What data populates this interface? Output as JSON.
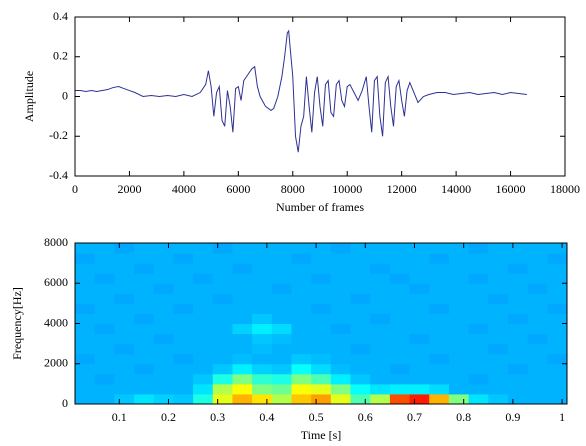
{
  "chart_data": [
    {
      "type": "line",
      "ylabel": "Amplitude",
      "xlabel": "Number of frames",
      "color": "#2e3192",
      "x": [
        0,
        200,
        400,
        600,
        800,
        1000,
        1200,
        1400,
        1600,
        1800,
        2000,
        2200,
        2500,
        2800,
        3100,
        3400,
        3700,
        4000,
        4300,
        4600,
        4800,
        4900,
        5000,
        5100,
        5200,
        5300,
        5400,
        5500,
        5600,
        5700,
        5800,
        5900,
        6000,
        6100,
        6200,
        6300,
        6400,
        6500,
        6600,
        6700,
        6800,
        7000,
        7200,
        7300,
        7450,
        7600,
        7700,
        7800,
        7850,
        7900,
        8000,
        8100,
        8200,
        8300,
        8400,
        8500,
        8600,
        8700,
        8800,
        8900,
        9000,
        9100,
        9200,
        9300,
        9400,
        9500,
        9600,
        9700,
        9800,
        9900,
        10000,
        10100,
        10250,
        10400,
        10550,
        10700,
        10800,
        10900,
        11000,
        11100,
        11200,
        11300,
        11400,
        11500,
        11600,
        11700,
        11800,
        11900,
        12000,
        12100,
        12200,
        12300,
        12450,
        12600,
        12800,
        13000,
        13300,
        13600,
        13900,
        14200,
        14500,
        14800,
        15100,
        15400,
        15700,
        16000,
        16300,
        16600
      ],
      "values": [
        0.03,
        0.03,
        0.025,
        0.03,
        0.025,
        0.03,
        0.035,
        0.045,
        0.05,
        0.04,
        0.03,
        0.02,
        0.0,
        0.005,
        0.0,
        0.005,
        0.0,
        0.01,
        0.0,
        0.02,
        0.06,
        0.13,
        0.05,
        -0.1,
        0.02,
        0.05,
        -0.12,
        -0.15,
        0.03,
        -0.05,
        -0.18,
        0.04,
        0.05,
        -0.02,
        0.08,
        0.1,
        0.12,
        0.14,
        0.15,
        0.05,
        0.0,
        -0.05,
        -0.07,
        -0.06,
        0.0,
        0.1,
        0.2,
        0.32,
        0.33,
        0.25,
        0.1,
        -0.2,
        -0.28,
        -0.15,
        -0.1,
        0.1,
        -0.05,
        -0.18,
        0.02,
        0.1,
        -0.05,
        -0.15,
        0.06,
        0.08,
        -0.08,
        -0.1,
        0.06,
        0.08,
        -0.02,
        -0.05,
        0.05,
        0.06,
        0.02,
        -0.02,
        0.03,
        0.1,
        -0.05,
        -0.18,
        0.08,
        0.1,
        -0.1,
        -0.2,
        0.07,
        0.1,
        -0.05,
        -0.15,
        0.05,
        0.08,
        -0.02,
        -0.1,
        0.03,
        0.07,
        0.02,
        -0.03,
        0.0,
        0.01,
        0.02,
        0.02,
        0.01,
        0.015,
        0.02,
        0.01,
        0.015,
        0.02,
        0.01,
        0.02,
        0.015,
        0.01
      ],
      "xlim": [
        0,
        18000
      ],
      "xticks": [
        0,
        2000,
        4000,
        6000,
        8000,
        10000,
        12000,
        14000,
        16000,
        18000
      ],
      "ylim": [
        -0.4,
        0.4
      ],
      "yticks": [
        -0.4,
        -0.2,
        0,
        0.2,
        0.4
      ]
    },
    {
      "type": "heatmap",
      "ylabel": "Frequency[Hz]",
      "xlabel": "Time [s]",
      "colormap": "jet",
      "x": [
        0.03,
        0.07,
        0.11,
        0.15,
        0.19,
        0.23,
        0.27,
        0.31,
        0.35,
        0.39,
        0.43,
        0.47,
        0.51,
        0.55,
        0.59,
        0.63,
        0.67,
        0.71,
        0.75,
        0.79,
        0.83,
        0.87,
        0.91,
        0.95,
        0.99
      ],
      "y": [
        250,
        750,
        1250,
        1750,
        2250,
        2750,
        3250,
        3750,
        4250,
        4750,
        5250,
        5750,
        6250,
        6750,
        7250,
        7750
      ],
      "z": [
        [
          0.3,
          0.3,
          0.32,
          0.35,
          0.33,
          0.32,
          0.4,
          0.6,
          0.7,
          0.65,
          0.55,
          0.68,
          0.72,
          0.6,
          0.45,
          0.55,
          0.8,
          0.85,
          0.7,
          0.5,
          0.35,
          0.32,
          0.3,
          0.3,
          0.3
        ],
        [
          0.3,
          0.3,
          0.3,
          0.3,
          0.3,
          0.3,
          0.35,
          0.55,
          0.62,
          0.5,
          0.48,
          0.62,
          0.6,
          0.5,
          0.38,
          0.35,
          0.36,
          0.36,
          0.34,
          0.3,
          0.3,
          0.3,
          0.3,
          0.3,
          0.3
        ],
        [
          0.3,
          0.29,
          0.3,
          0.3,
          0.3,
          0.3,
          0.32,
          0.4,
          0.5,
          0.42,
          0.4,
          0.5,
          0.45,
          0.36,
          0.32,
          0.3,
          0.3,
          0.3,
          0.3,
          0.3,
          0.29,
          0.3,
          0.3,
          0.3,
          0.3
        ],
        [
          0.3,
          0.3,
          0.3,
          0.29,
          0.3,
          0.3,
          0.3,
          0.32,
          0.36,
          0.33,
          0.32,
          0.38,
          0.34,
          0.31,
          0.3,
          0.3,
          0.29,
          0.3,
          0.3,
          0.3,
          0.3,
          0.3,
          0.29,
          0.3,
          0.3
        ],
        [
          0.29,
          0.3,
          0.3,
          0.3,
          0.3,
          0.29,
          0.3,
          0.3,
          0.31,
          0.3,
          0.3,
          0.32,
          0.31,
          0.3,
          0.3,
          0.3,
          0.3,
          0.3,
          0.29,
          0.3,
          0.3,
          0.3,
          0.3,
          0.3,
          0.29
        ],
        [
          0.3,
          0.3,
          0.29,
          0.3,
          0.3,
          0.3,
          0.3,
          0.3,
          0.3,
          0.31,
          0.3,
          0.3,
          0.3,
          0.3,
          0.29,
          0.3,
          0.3,
          0.3,
          0.3,
          0.3,
          0.3,
          0.29,
          0.3,
          0.3,
          0.3
        ],
        [
          0.3,
          0.3,
          0.3,
          0.3,
          0.29,
          0.3,
          0.3,
          0.3,
          0.3,
          0.32,
          0.31,
          0.3,
          0.3,
          0.3,
          0.3,
          0.3,
          0.3,
          0.29,
          0.3,
          0.3,
          0.3,
          0.3,
          0.3,
          0.29,
          0.3
        ],
        [
          0.3,
          0.29,
          0.3,
          0.3,
          0.3,
          0.3,
          0.3,
          0.3,
          0.33,
          0.36,
          0.34,
          0.3,
          0.3,
          0.29,
          0.3,
          0.3,
          0.3,
          0.3,
          0.3,
          0.3,
          0.29,
          0.3,
          0.3,
          0.3,
          0.3
        ],
        [
          0.3,
          0.3,
          0.3,
          0.29,
          0.3,
          0.3,
          0.3,
          0.3,
          0.3,
          0.32,
          0.3,
          0.3,
          0.3,
          0.3,
          0.3,
          0.29,
          0.3,
          0.3,
          0.3,
          0.3,
          0.3,
          0.3,
          0.29,
          0.3,
          0.3
        ],
        [
          0.29,
          0.3,
          0.3,
          0.3,
          0.3,
          0.29,
          0.3,
          0.3,
          0.3,
          0.3,
          0.3,
          0.3,
          0.29,
          0.3,
          0.3,
          0.3,
          0.3,
          0.3,
          0.29,
          0.3,
          0.3,
          0.3,
          0.3,
          0.3,
          0.29
        ],
        [
          0.3,
          0.3,
          0.29,
          0.3,
          0.3,
          0.3,
          0.3,
          0.29,
          0.3,
          0.3,
          0.3,
          0.3,
          0.3,
          0.3,
          0.29,
          0.3,
          0.3,
          0.3,
          0.3,
          0.3,
          0.3,
          0.29,
          0.3,
          0.3,
          0.3
        ],
        [
          0.3,
          0.3,
          0.3,
          0.3,
          0.29,
          0.3,
          0.3,
          0.3,
          0.3,
          0.3,
          0.29,
          0.3,
          0.3,
          0.3,
          0.3,
          0.3,
          0.3,
          0.29,
          0.3,
          0.3,
          0.3,
          0.3,
          0.3,
          0.29,
          0.3
        ],
        [
          0.3,
          0.29,
          0.3,
          0.3,
          0.3,
          0.3,
          0.29,
          0.3,
          0.3,
          0.3,
          0.3,
          0.3,
          0.29,
          0.3,
          0.3,
          0.3,
          0.29,
          0.3,
          0.3,
          0.3,
          0.29,
          0.3,
          0.3,
          0.3,
          0.3
        ],
        [
          0.3,
          0.3,
          0.3,
          0.29,
          0.3,
          0.3,
          0.3,
          0.3,
          0.29,
          0.3,
          0.3,
          0.3,
          0.3,
          0.3,
          0.3,
          0.29,
          0.3,
          0.3,
          0.3,
          0.3,
          0.3,
          0.3,
          0.29,
          0.3,
          0.3
        ],
        [
          0.29,
          0.3,
          0.3,
          0.3,
          0.3,
          0.29,
          0.3,
          0.3,
          0.3,
          0.3,
          0.3,
          0.29,
          0.3,
          0.3,
          0.3,
          0.3,
          0.3,
          0.3,
          0.29,
          0.3,
          0.3,
          0.3,
          0.3,
          0.3,
          0.29
        ],
        [
          0.3,
          0.3,
          0.29,
          0.3,
          0.3,
          0.3,
          0.3,
          0.29,
          0.3,
          0.3,
          0.3,
          0.3,
          0.3,
          0.29,
          0.3,
          0.3,
          0.3,
          0.3,
          0.3,
          0.3,
          0.29,
          0.3,
          0.3,
          0.3,
          0.3
        ]
      ],
      "xlim": [
        0.01,
        1.01
      ],
      "xticks": [
        0.1,
        0.2,
        0.3,
        0.4,
        0.5,
        0.6,
        0.7,
        0.8,
        0.9,
        1
      ],
      "ylim": [
        0,
        8000
      ],
      "yticks": [
        0,
        2000,
        4000,
        6000,
        8000
      ]
    }
  ]
}
